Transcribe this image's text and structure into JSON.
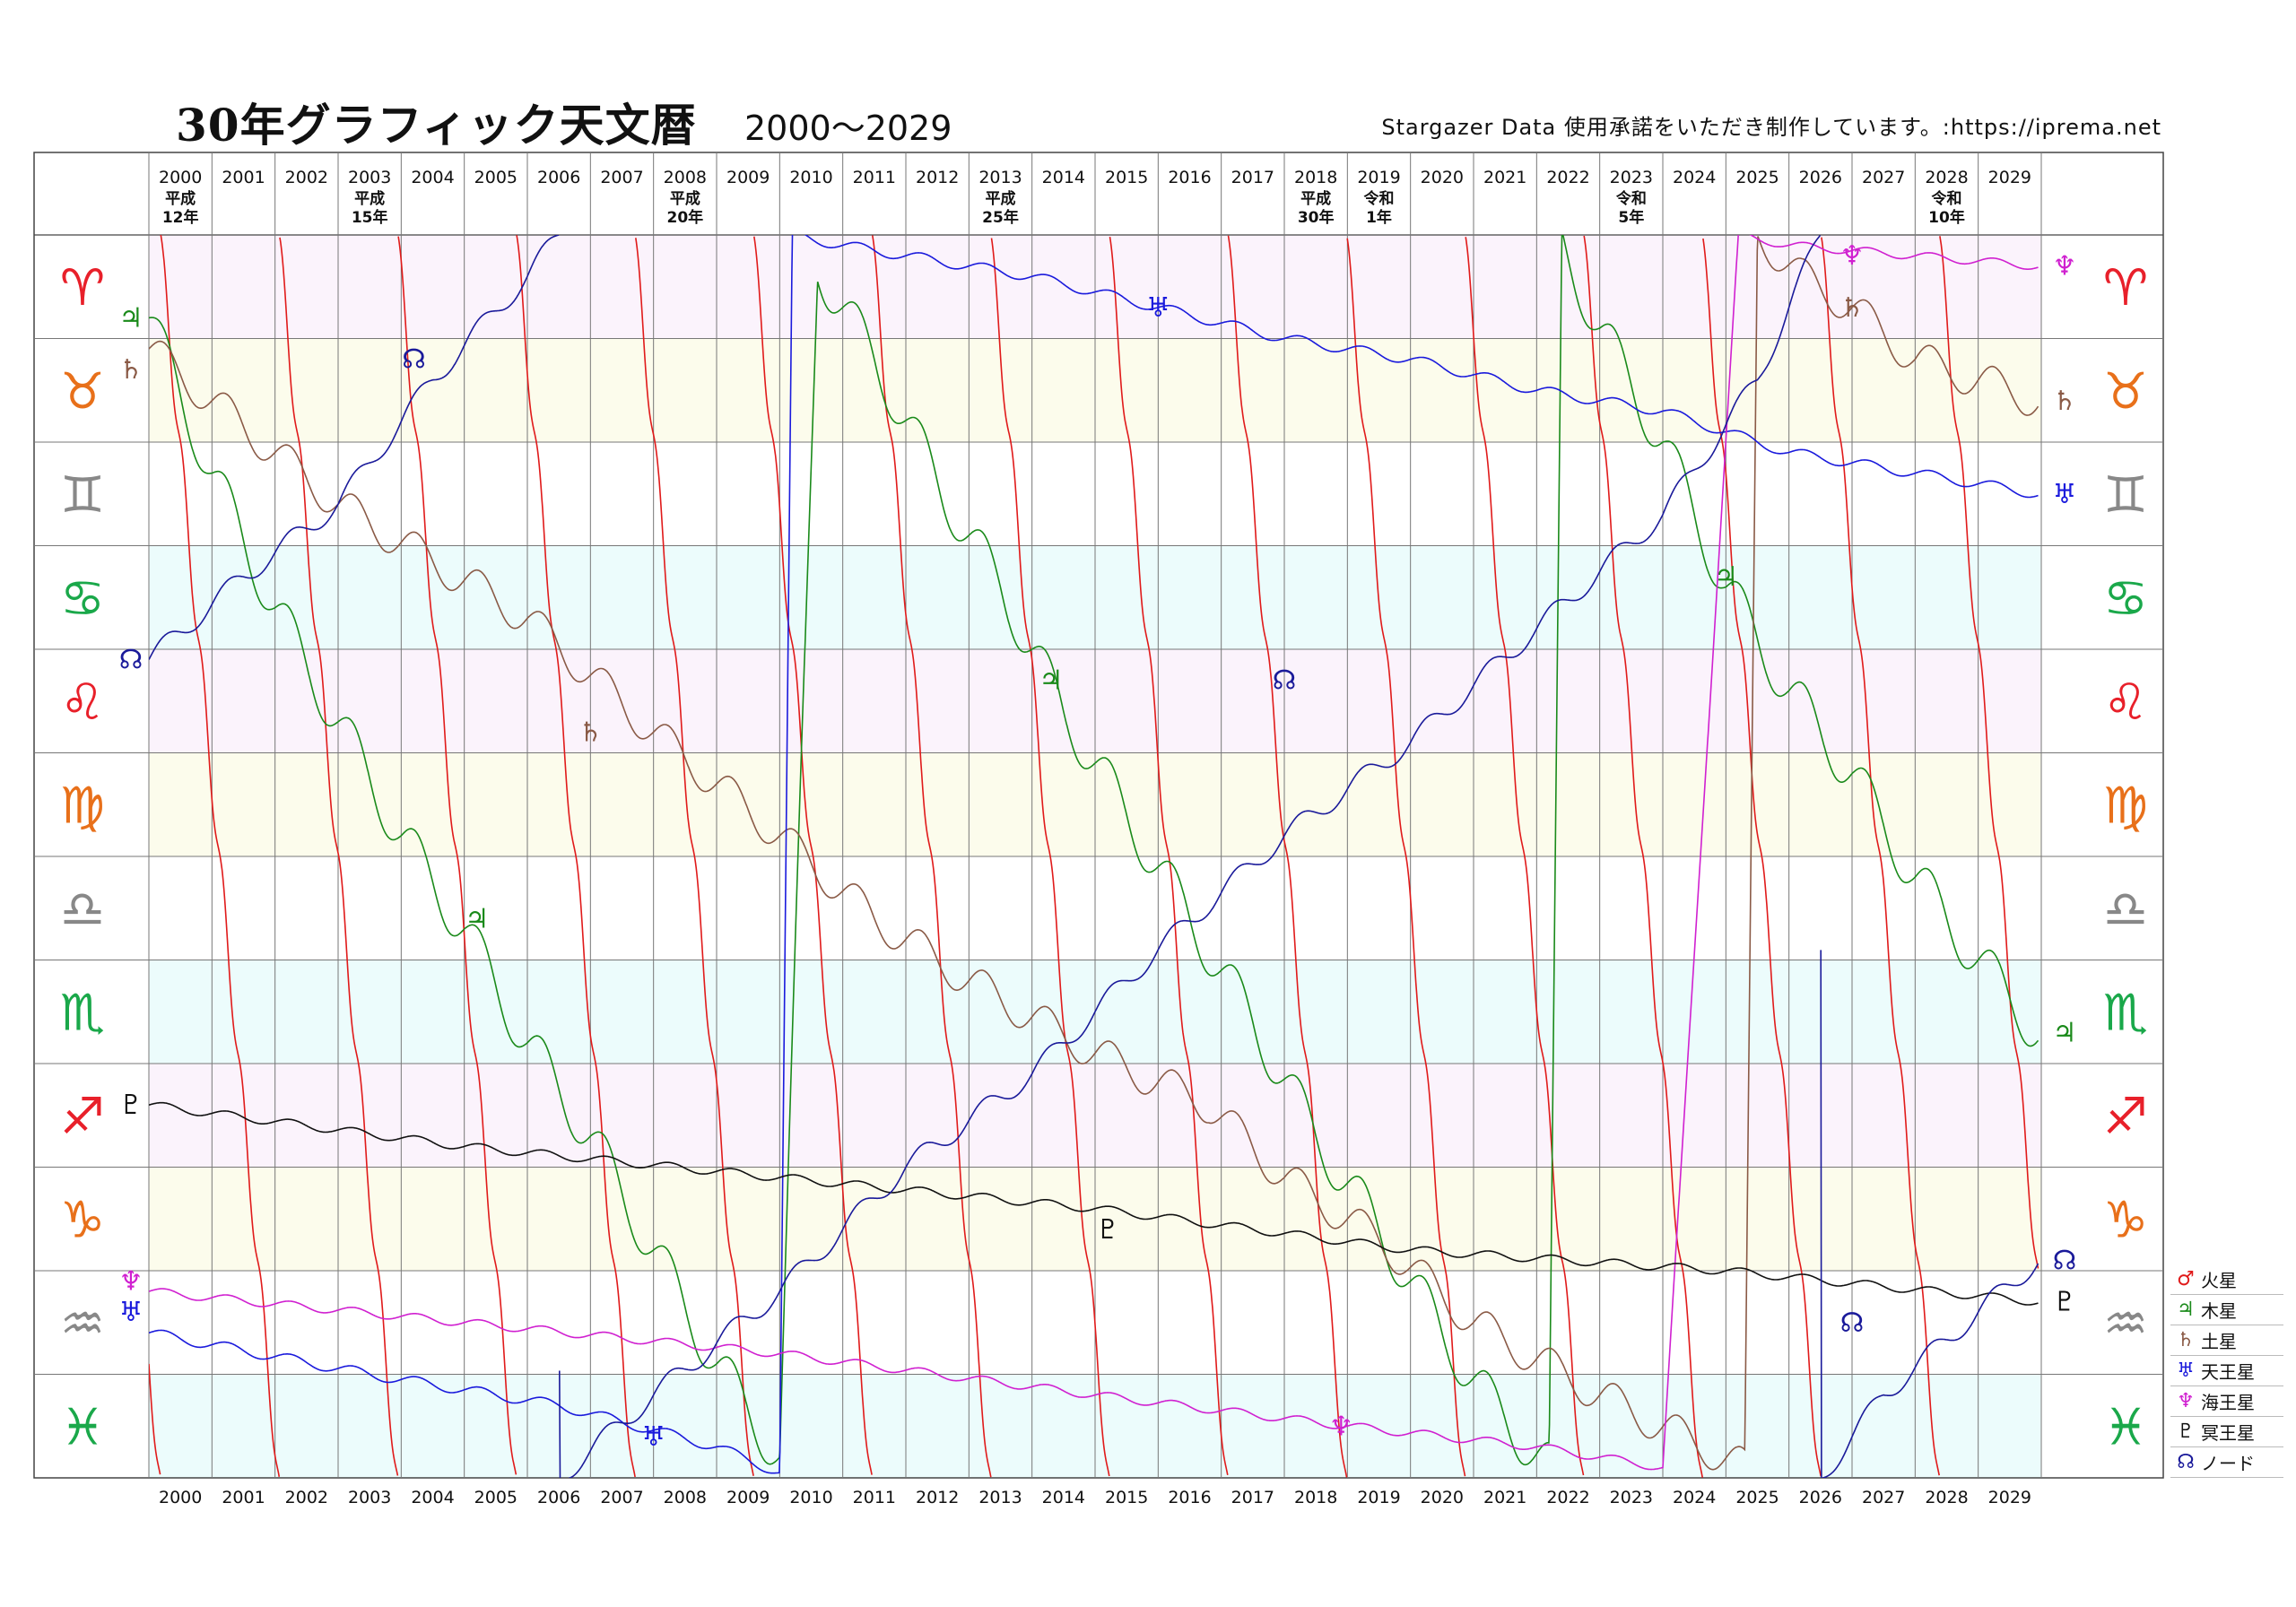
{
  "header": {
    "title": "30年グラフィック天文暦",
    "range": "2000～2029",
    "credit": "Stargazer Data 使用承諾をいただき制作しています。:https://iprema.net"
  },
  "chart_data": {
    "type": "line",
    "title": "30年グラフィック天文暦",
    "subtitle": "2000～2029",
    "x_axis": {
      "years": [
        "2000",
        "2001",
        "2002",
        "2003",
        "2004",
        "2005",
        "2006",
        "2007",
        "2008",
        "2009",
        "2010",
        "2011",
        "2012",
        "2013",
        "2014",
        "2015",
        "2016",
        "2017",
        "2018",
        "2019",
        "2020",
        "2021",
        "2022",
        "2023",
        "2024",
        "2025",
        "2026",
        "2027",
        "2028",
        "2029"
      ],
      "era_labels": [
        {
          "year": "2000",
          "line1": "平成",
          "line2": "12年"
        },
        {
          "year": "2003",
          "line1": "平成",
          "line2": "15年"
        },
        {
          "year": "2008",
          "line1": "平成",
          "line2": "20年"
        },
        {
          "year": "2013",
          "line1": "平成",
          "line2": "25年"
        },
        {
          "year": "2018",
          "line1": "平成",
          "line2": "30年"
        },
        {
          "year": "2019",
          "line1": "令和",
          "line2": "1年"
        },
        {
          "year": "2023",
          "line1": "令和",
          "line2": "5年"
        },
        {
          "year": "2028",
          "line1": "令和",
          "line2": "10年"
        }
      ],
      "range": [
        2000,
        2030
      ]
    },
    "y_axis": {
      "signs": [
        {
          "glyph": "♈",
          "color": "#e8202a"
        },
        {
          "glyph": "♉",
          "color": "#e8701a"
        },
        {
          "glyph": "♊",
          "color": "#888888"
        },
        {
          "glyph": "♋",
          "color": "#1aa84a"
        },
        {
          "glyph": "♌",
          "color": "#e8202a"
        },
        {
          "glyph": "♍",
          "color": "#e8701a"
        },
        {
          "glyph": "♎",
          "color": "#888888"
        },
        {
          "glyph": "♏",
          "color": "#1aa84a"
        },
        {
          "glyph": "♐",
          "color": "#e8202a"
        },
        {
          "glyph": "♑",
          "color": "#e8701a"
        },
        {
          "glyph": "♒",
          "color": "#888888"
        },
        {
          "glyph": "♓",
          "color": "#1aa84a"
        }
      ],
      "row_colors": [
        "#fbf3fc",
        "#fcfcec",
        "#ffffff",
        "#ecfcfc",
        "#fbf3fc",
        "#fcfcec",
        "#ffffff",
        "#ecfcfc",
        "#fbf3fc",
        "#fcfcec",
        "#ffffff",
        "#ecfcfc"
      ],
      "unit": "zodiac sign (0–12, top = ♈ 0°)"
    },
    "series": [
      {
        "name": "火星",
        "symbol": "♂",
        "color": "#e01a1a",
        "type": "periodic",
        "period_years": 1.88,
        "phase_sign": 10.9,
        "wiggle": 0.6
      },
      {
        "name": "木星",
        "symbol": "♃",
        "color": "#1a8a1a",
        "points": [
          [
            2000.0,
            0.8
          ],
          [
            2001.0,
            2.3
          ],
          [
            2002.0,
            3.6
          ],
          [
            2003.0,
            4.7
          ],
          [
            2004.0,
            5.8
          ],
          [
            2005.0,
            6.7
          ],
          [
            2006.0,
            7.8
          ],
          [
            2007.0,
            8.7
          ],
          [
            2008.0,
            9.8
          ],
          [
            2009.0,
            10.9
          ],
          [
            2010.0,
            11.8
          ],
          [
            2010.6,
            0.3
          ],
          [
            2011.5,
            1.2
          ],
          [
            2012.6,
            2.5
          ],
          [
            2013.5,
            3.4
          ],
          [
            2014.5,
            4.6
          ],
          [
            2015.5,
            5.6
          ],
          [
            2016.5,
            6.6
          ],
          [
            2017.5,
            7.6
          ],
          [
            2018.5,
            8.7
          ],
          [
            2019.6,
            9.7
          ],
          [
            2020.5,
            10.6
          ],
          [
            2021.3,
            11.3
          ],
          [
            2022.2,
            11.9
          ],
          [
            2022.4,
            0.1
          ],
          [
            2023.0,
            0.9
          ],
          [
            2024.0,
            2.0
          ],
          [
            2025.0,
            3.4
          ],
          [
            2026.0,
            4.4
          ],
          [
            2027.0,
            5.2
          ],
          [
            2028.0,
            6.2
          ],
          [
            2029.0,
            7.0
          ],
          [
            2029.95,
            7.7
          ]
        ],
        "wiggle": 0.25,
        "label_pos": [
          [
            2000.0,
            0.8
          ],
          [
            2005.2,
            6.6
          ],
          [
            2014.3,
            4.3
          ],
          [
            2025.0,
            3.3
          ],
          [
            2029.9,
            7.7
          ]
        ]
      },
      {
        "name": "土星",
        "symbol": "♄",
        "color": "#8a5a46",
        "points": [
          [
            2000.0,
            1.1
          ],
          [
            2003.0,
            2.6
          ],
          [
            2006.0,
            3.7
          ],
          [
            2008.0,
            4.8
          ],
          [
            2010.0,
            5.8
          ],
          [
            2011.5,
            6.6
          ],
          [
            2013.0,
            7.2
          ],
          [
            2015.0,
            7.9
          ],
          [
            2016.8,
            8.4
          ],
          [
            2018.0,
            9.1
          ],
          [
            2019.5,
            9.7
          ],
          [
            2021.0,
            10.5
          ],
          [
            2023.0,
            11.2
          ],
          [
            2025.3,
            11.9
          ],
          [
            2025.5,
            0.0
          ],
          [
            2026.2,
            0.4
          ],
          [
            2027.0,
            0.7
          ],
          [
            2028.0,
            1.2
          ],
          [
            2029.0,
            1.4
          ],
          [
            2029.95,
            1.6
          ]
        ],
        "wiggle": 0.18,
        "label_pos": [
          [
            2000.0,
            1.3
          ],
          [
            2007.0,
            4.8
          ],
          [
            2027.0,
            0.7
          ],
          [
            2029.9,
            1.6
          ]
        ]
      },
      {
        "name": "天王星",
        "symbol": "♅",
        "color": "#1a1adc",
        "points": [
          [
            2000.0,
            10.6
          ],
          [
            2003.5,
            11.0
          ],
          [
            2006.5,
            11.3
          ],
          [
            2009.0,
            11.7
          ],
          [
            2010.0,
            11.95
          ],
          [
            2010.2,
            0.0
          ],
          [
            2011.0,
            0.1
          ],
          [
            2014.0,
            0.4
          ],
          [
            2016.0,
            0.7
          ],
          [
            2018.0,
            1.0
          ],
          [
            2020.0,
            1.2
          ],
          [
            2022.0,
            1.5
          ],
          [
            2024.0,
            1.7
          ],
          [
            2026.0,
            2.1
          ],
          [
            2028.0,
            2.3
          ],
          [
            2029.95,
            2.5
          ]
        ],
        "wiggle": 0.05,
        "label_pos": [
          [
            2000.0,
            10.4
          ],
          [
            2008.0,
            11.6
          ],
          [
            2016.0,
            0.7
          ],
          [
            2029.9,
            2.5
          ]
        ]
      },
      {
        "name": "海王星",
        "symbol": "♆",
        "color": "#d020d0",
        "points": [
          [
            2000.0,
            10.2
          ],
          [
            2005.0,
            10.5
          ],
          [
            2010.0,
            10.8
          ],
          [
            2015.0,
            11.2
          ],
          [
            2019.0,
            11.5
          ],
          [
            2022.0,
            11.7
          ],
          [
            2024.0,
            11.9
          ],
          [
            2025.2,
            0.0
          ],
          [
            2026.0,
            0.1
          ],
          [
            2028.0,
            0.2
          ],
          [
            2029.95,
            0.3
          ]
        ],
        "wiggle": 0.04,
        "label_pos": [
          [
            2000.0,
            10.1
          ],
          [
            2018.9,
            11.5
          ],
          [
            2027.0,
            0.2
          ],
          [
            2029.9,
            0.3
          ]
        ]
      },
      {
        "name": "冥王星",
        "symbol": "♇",
        "color": "#111111",
        "points": [
          [
            2000.0,
            8.4
          ],
          [
            2005.0,
            8.8
          ],
          [
            2010.0,
            9.1
          ],
          [
            2015.0,
            9.4
          ],
          [
            2020.0,
            9.8
          ],
          [
            2025.0,
            10.0
          ],
          [
            2029.95,
            10.3
          ]
        ],
        "wiggle": 0.04,
        "label_pos": [
          [
            2000.0,
            8.4
          ],
          [
            2015.2,
            9.6
          ],
          [
            2029.9,
            10.3
          ]
        ]
      },
      {
        "name": "ノード",
        "symbol": "☊",
        "color": "#1a1a9a",
        "points": [
          [
            2000.0,
            4.1
          ],
          [
            2001.5,
            3.3
          ],
          [
            2003.0,
            2.6
          ],
          [
            2004.5,
            1.4
          ],
          [
            2006.0,
            0.4
          ],
          [
            2006.5,
            0.0
          ],
          [
            2006.51,
            12.0
          ],
          [
            2008.0,
            11.2
          ],
          [
            2010.0,
            10.2
          ],
          [
            2012.0,
            9.0
          ],
          [
            2014.0,
            8.1
          ],
          [
            2016.0,
            6.9
          ],
          [
            2018.0,
            5.8
          ],
          [
            2020.0,
            4.9
          ],
          [
            2022.0,
            3.8
          ],
          [
            2024.0,
            2.7
          ],
          [
            2025.5,
            1.4
          ],
          [
            2026.5,
            0.0
          ],
          [
            2026.51,
            12.0
          ],
          [
            2027.5,
            11.2
          ],
          [
            2029.0,
            10.4
          ],
          [
            2029.95,
            9.9
          ]
        ],
        "wiggle": 0.1,
        "label_pos": [
          [
            2000.0,
            4.1
          ],
          [
            2004.2,
            1.2
          ],
          [
            2018.0,
            4.3
          ],
          [
            2027.0,
            10.5
          ],
          [
            2029.9,
            9.9
          ]
        ]
      }
    ],
    "legend": {
      "placement": "bottom-right",
      "entries": [
        {
          "symbol": "♂",
          "label": "火星",
          "color": "#e01a1a"
        },
        {
          "symbol": "♃",
          "label": "木星",
          "color": "#1a8a1a"
        },
        {
          "symbol": "♄",
          "label": "土星",
          "color": "#8a5a46"
        },
        {
          "symbol": "♅",
          "label": "天王星",
          "color": "#1a1adc"
        },
        {
          "symbol": "♆",
          "label": "海王星",
          "color": "#d020d0"
        },
        {
          "symbol": "♇",
          "label": "冥王星",
          "color": "#111111"
        },
        {
          "symbol": "☊",
          "label": "ノード",
          "color": "#1a1a9a"
        }
      ]
    },
    "grid": true
  }
}
